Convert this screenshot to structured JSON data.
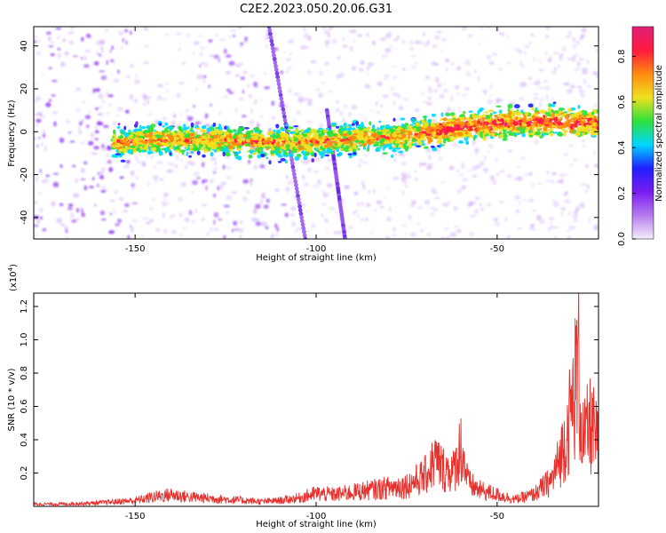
{
  "title": "C2E2.2023.050.20.06.G31",
  "chart_data": [
    {
      "type": "heatmap",
      "xlabel": "Height of straight line (km)",
      "ylabel": "Frequency (Hz)",
      "xlim": [
        -178,
        -22
      ],
      "ylim": [
        -50,
        49
      ],
      "x_ticks": [
        -150,
        -100,
        -50
      ],
      "y_ticks": [
        -40,
        -20,
        0,
        20,
        40
      ],
      "colorbar": {
        "label": "Normalized spectral amplitude",
        "range": [
          0.0,
          0.93
        ],
        "ticks": [
          0.0,
          0.2,
          0.4,
          0.6,
          0.8
        ],
        "tick_labels": [
          "0.0",
          "0.2",
          "0.4",
          "0.6",
          "0.8"
        ],
        "colors": [
          "#f4eefc",
          "#b57bef",
          "#7a1cf0",
          "#1f1fff",
          "#00d8ff",
          "#2fe03a",
          "#f0e020",
          "#ff8a10",
          "#ff1a40",
          "#e0207a"
        ]
      },
      "ridge": [
        {
          "x": -155,
          "y": -5
        },
        {
          "x": -145,
          "y": -4
        },
        {
          "x": -135,
          "y": -4
        },
        {
          "x": -125,
          "y": -4
        },
        {
          "x": -115,
          "y": -5
        },
        {
          "x": -105,
          "y": -5
        },
        {
          "x": -95,
          "y": -4
        },
        {
          "x": -85,
          "y": -3
        },
        {
          "x": -75,
          "y": -2
        },
        {
          "x": -65,
          "y": 1
        },
        {
          "x": -55,
          "y": 3
        },
        {
          "x": -45,
          "y": 4
        },
        {
          "x": -35,
          "y": 5
        },
        {
          "x": -25,
          "y": 4
        }
      ],
      "diagonal_streaks": [
        {
          "from": [
            -113,
            49
          ],
          "to": [
            -103,
            -50
          ]
        },
        {
          "from": [
            -97,
            10
          ],
          "to": [
            -92,
            -50
          ]
        }
      ]
    },
    {
      "type": "line",
      "xlabel": "Height of straight line (km)",
      "ylabel": "SNR (10 * v/v)",
      "y_multiplier": "(x10",
      "y_multiplier_exp": "4",
      "y_multiplier_close": ")",
      "xlim": [
        -178,
        -22
      ],
      "ylim": [
        0.0,
        1.28
      ],
      "x_ticks": [
        -150,
        -100,
        -50
      ],
      "y_ticks": [
        0.2,
        0.4,
        0.6,
        0.8,
        1.0,
        1.2
      ],
      "y_tick_labels": [
        "0.2",
        "0.4",
        "0.6",
        "0.8",
        "1.0",
        "1.2"
      ],
      "color": "#e8302c",
      "series": [
        {
          "x": [
            -178,
            -170,
            -160,
            -155,
            -150,
            -145,
            -140,
            -135,
            -130,
            -125,
            -120,
            -115,
            -110,
            -105,
            -100,
            -95,
            -90,
            -85,
            -80,
            -75,
            -70,
            -67,
            -65,
            -62,
            -60,
            -58,
            -55,
            -50,
            -45,
            -40,
            -35,
            -33,
            -31,
            -29,
            -28,
            -27.5,
            -27,
            -26,
            -25,
            -24,
            -23,
            -22
          ],
          "y": [
            0.02,
            0.02,
            0.03,
            0.04,
            0.05,
            0.08,
            0.1,
            0.08,
            0.07,
            0.06,
            0.05,
            0.04,
            0.05,
            0.07,
            0.11,
            0.1,
            0.12,
            0.14,
            0.16,
            0.18,
            0.26,
            0.4,
            0.32,
            0.3,
            0.52,
            0.2,
            0.14,
            0.1,
            0.06,
            0.1,
            0.22,
            0.38,
            0.6,
            0.9,
            1.15,
            1.25,
            0.8,
            0.55,
            0.65,
            0.7,
            0.6,
            0.5
          ]
        }
      ]
    }
  ]
}
